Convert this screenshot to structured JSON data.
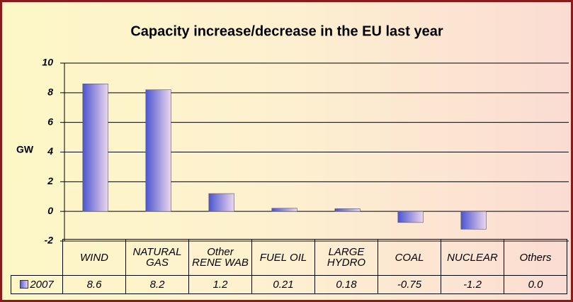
{
  "chart_data": {
    "type": "bar",
    "title": "Capacity increase/decrease in the EU last year",
    "ylabel": "GW",
    "categories": [
      "WIND",
      "NATURAL\nGAS",
      "Other\nRENE WAB",
      "FUEL OIL",
      "LARGE\nHYDRO",
      "COAL",
      "NUCLEAR",
      "Others"
    ],
    "series": [
      {
        "name": "2007",
        "color": "#5a64d8",
        "values": [
          8.6,
          8.2,
          1.2,
          0.21,
          0.18,
          -0.75,
          -1.2,
          0.0
        ],
        "value_labels": [
          "8.6",
          "8.2",
          "1.2",
          "0.21",
          "0.18",
          "-0.75",
          "-1.2",
          "0.0"
        ]
      }
    ],
    "ylim": [
      -2,
      10
    ],
    "yticks": [
      -2,
      0,
      2,
      4,
      6,
      8,
      10
    ],
    "grid": true
  }
}
